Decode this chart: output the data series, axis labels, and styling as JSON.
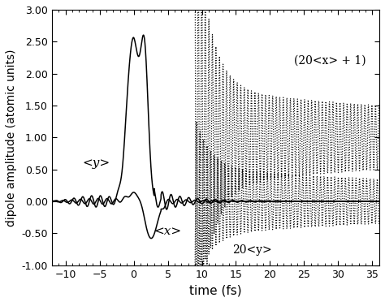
{
  "xlim": [
    -12,
    36
  ],
  "ylim": [
    -1.0,
    3.0
  ],
  "xlabel": "time (fs)",
  "ylabel": "dipole amplitude (atomic units)",
  "xticks": [
    -10,
    -5,
    0,
    5,
    10,
    15,
    20,
    25,
    30,
    35
  ],
  "yticks": [
    -1.0,
    -0.5,
    0.0,
    0.5,
    1.0,
    1.5,
    2.0,
    2.5,
    3.0
  ],
  "label_y": "<y>",
  "label_x": "<x>",
  "label_20x": "(20<x> + 1)",
  "label_20y": "20<y>",
  "line_color": "black",
  "dashed_color": "black",
  "figsize": [
    4.74,
    3.72
  ],
  "dpi": 100
}
